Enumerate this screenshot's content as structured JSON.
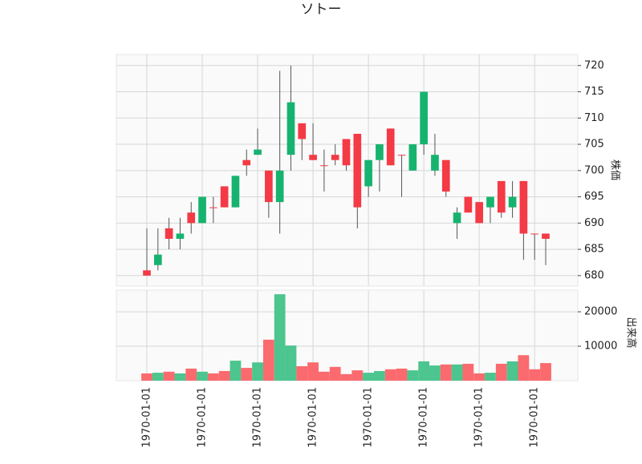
{
  "chart_data": {
    "type": "candlestick",
    "title": "ソトー",
    "ylabel": "株価",
    "categories": [
      "1970-01-01",
      null,
      null,
      null,
      null,
      "1970-01-01",
      null,
      null,
      null,
      null,
      "1970-01-01",
      null,
      null,
      null,
      null,
      "1970-01-01",
      null,
      null,
      null,
      null,
      "1970-01-01",
      null,
      null,
      null,
      null,
      "1970-01-01",
      null,
      null,
      null,
      null,
      "1970-01-01",
      null,
      null,
      null,
      null,
      "1970-01-01",
      null
    ],
    "open": [
      681,
      682,
      689,
      687,
      692,
      690,
      693,
      697,
      693,
      702,
      703,
      700,
      694,
      703,
      709,
      703,
      701,
      703,
      706,
      707,
      697,
      702,
      708,
      703,
      700,
      705,
      700,
      702,
      690,
      695,
      694,
      693,
      698,
      693,
      698,
      688,
      688
    ],
    "high": [
      689,
      689,
      691,
      691,
      694,
      695,
      695,
      697,
      699,
      704,
      708,
      700,
      719,
      720,
      709,
      709,
      704,
      705,
      706,
      707,
      702,
      705,
      708,
      703,
      705,
      715,
      707,
      702,
      693,
      695,
      694,
      695,
      698,
      698,
      698,
      688,
      688
    ],
    "low": [
      680,
      681,
      685,
      685,
      688,
      690,
      690,
      693,
      693,
      699,
      703,
      691,
      688,
      700,
      702,
      702,
      696,
      701,
      700,
      689,
      695,
      696,
      701,
      695,
      700,
      703,
      699,
      695,
      687,
      692,
      690,
      690,
      691,
      691,
      683,
      683,
      682
    ],
    "close": [
      680,
      684,
      687,
      688,
      690,
      695,
      693,
      693,
      699,
      701,
      704,
      694,
      700,
      713,
      706,
      702,
      701,
      702,
      701,
      693,
      702,
      705,
      701,
      703,
      705,
      715,
      703,
      696,
      692,
      692,
      690,
      695,
      692,
      695,
      688,
      688,
      687
    ],
    "up_color": "#16b36f",
    "down_color": "#f43a45",
    "ylim": [
      678,
      722.1
    ],
    "yticks": [
      680,
      685,
      690,
      695,
      700,
      705,
      710,
      715,
      720
    ],
    "grid": true,
    "volume": {
      "label": "出来高",
      "up_color": "#4cc58e",
      "down_color": "#fb6a6e",
      "values": [
        2100,
        2300,
        2600,
        2100,
        3500,
        2600,
        2100,
        2800,
        5800,
        3700,
        5300,
        11900,
        25100,
        10200,
        4200,
        5300,
        2600,
        4000,
        1900,
        3000,
        2300,
        2800,
        3300,
        3500,
        3000,
        5600,
        4400,
        4700,
        4700,
        4900,
        2100,
        2300,
        4900,
        5600,
        7400,
        3300,
        5100
      ],
      "ylim": [
        0,
        26300
      ],
      "yticks": [
        10000,
        20000
      ]
    }
  }
}
